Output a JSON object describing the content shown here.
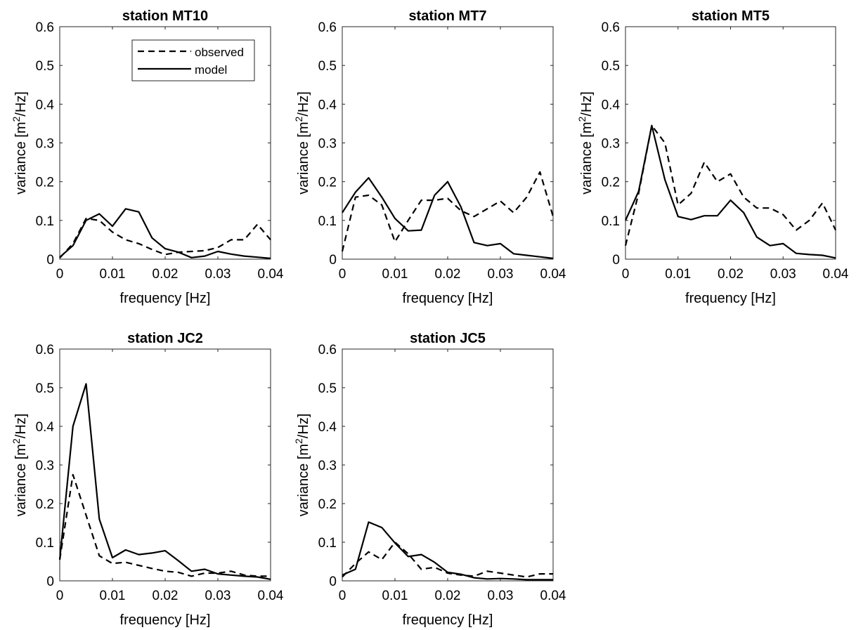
{
  "figure": {
    "legend": {
      "observed": "observed",
      "model": "model",
      "placement": "top-right (first panel)"
    }
  },
  "chart_data": [
    {
      "type": "line",
      "title": "station MT10",
      "xlabel": "frequency [Hz]",
      "ylabel_main": "variance [m",
      "ylabel_sup": "2",
      "ylabel_tail": "/Hz]",
      "xlim": [
        0,
        0.04
      ],
      "ylim": [
        0,
        0.6
      ],
      "xticks": [
        0,
        0.01,
        0.02,
        0.03,
        0.04
      ],
      "xtick_labels": [
        "0",
        "0.01",
        "0.02",
        "0.03",
        "0.04"
      ],
      "yticks": [
        0,
        0.1,
        0.2,
        0.3,
        0.4,
        0.5,
        0.6
      ],
      "ytick_labels": [
        "0",
        "0.1",
        "0.2",
        "0.3",
        "0.4",
        "0.5",
        "0.6"
      ],
      "legend": true,
      "series": [
        {
          "name": "observed",
          "style": "dashed",
          "x": [
            0,
            0.0025,
            0.005,
            0.0075,
            0.01,
            0.0125,
            0.015,
            0.0175,
            0.02,
            0.0225,
            0.025,
            0.0275,
            0.03,
            0.0325,
            0.035,
            0.0375,
            0.04
          ],
          "y": [
            0.003,
            0.04,
            0.105,
            0.1,
            0.07,
            0.05,
            0.04,
            0.025,
            0.012,
            0.018,
            0.02,
            0.022,
            0.03,
            0.05,
            0.05,
            0.09,
            0.05
          ]
        },
        {
          "name": "model",
          "style": "solid",
          "x": [
            0,
            0.0025,
            0.005,
            0.0075,
            0.01,
            0.0125,
            0.015,
            0.0175,
            0.02,
            0.0225,
            0.025,
            0.0275,
            0.03,
            0.0325,
            0.035,
            0.0375,
            0.04
          ],
          "y": [
            0.005,
            0.035,
            0.1,
            0.117,
            0.085,
            0.13,
            0.122,
            0.055,
            0.027,
            0.018,
            0.004,
            0.008,
            0.02,
            0.013,
            0.008,
            0.005,
            0.002
          ]
        }
      ]
    },
    {
      "type": "line",
      "title": "station MT7",
      "xlabel": "frequency [Hz]",
      "ylabel_main": "variance [m",
      "ylabel_sup": "2",
      "ylabel_tail": "/Hz]",
      "xlim": [
        0,
        0.04
      ],
      "ylim": [
        0,
        0.6
      ],
      "xticks": [
        0,
        0.01,
        0.02,
        0.03,
        0.04
      ],
      "xtick_labels": [
        "0",
        "0.01",
        "0.02",
        "0.03",
        "0.04"
      ],
      "yticks": [
        0,
        0.1,
        0.2,
        0.3,
        0.4,
        0.5,
        0.6
      ],
      "ytick_labels": [
        "0",
        "0.1",
        "0.2",
        "0.3",
        "0.4",
        "0.5",
        "0.6"
      ],
      "legend": false,
      "series": [
        {
          "name": "observed",
          "style": "dashed",
          "x": [
            0,
            0.0025,
            0.005,
            0.0075,
            0.01,
            0.0125,
            0.015,
            0.0175,
            0.02,
            0.0225,
            0.025,
            0.0275,
            0.03,
            0.0325,
            0.035,
            0.0375,
            0.04
          ],
          "y": [
            0.02,
            0.16,
            0.165,
            0.14,
            0.045,
            0.1,
            0.152,
            0.152,
            0.157,
            0.125,
            0.11,
            0.13,
            0.15,
            0.12,
            0.16,
            0.225,
            0.11
          ]
        },
        {
          "name": "model",
          "style": "solid",
          "x": [
            0,
            0.0025,
            0.005,
            0.0075,
            0.01,
            0.0125,
            0.015,
            0.0175,
            0.02,
            0.0225,
            0.025,
            0.0275,
            0.03,
            0.0325,
            0.035,
            0.0375,
            0.04
          ],
          "y": [
            0.12,
            0.173,
            0.21,
            0.16,
            0.105,
            0.073,
            0.075,
            0.165,
            0.2,
            0.135,
            0.043,
            0.035,
            0.04,
            0.014,
            0.01,
            0.006,
            0.002
          ]
        }
      ]
    },
    {
      "type": "line",
      "title": "station MT5",
      "xlabel": "frequency [Hz]",
      "ylabel_main": "variance [m",
      "ylabel_sup": "2",
      "ylabel_tail": "/Hz]",
      "xlim": [
        0,
        0.04
      ],
      "ylim": [
        0,
        0.6
      ],
      "xticks": [
        0,
        0.01,
        0.02,
        0.03,
        0.04
      ],
      "xtick_labels": [
        "0",
        "0.01",
        "0.02",
        "0.03",
        "0.04"
      ],
      "yticks": [
        0,
        0.1,
        0.2,
        0.3,
        0.4,
        0.5,
        0.6
      ],
      "ytick_labels": [
        "0",
        "0.1",
        "0.2",
        "0.3",
        "0.4",
        "0.5",
        "0.6"
      ],
      "legend": false,
      "series": [
        {
          "name": "observed",
          "style": "dashed",
          "x": [
            0,
            0.0025,
            0.005,
            0.0075,
            0.01,
            0.0125,
            0.015,
            0.0175,
            0.02,
            0.0225,
            0.025,
            0.0275,
            0.03,
            0.0325,
            0.035,
            0.0375,
            0.04
          ],
          "y": [
            0.035,
            0.17,
            0.345,
            0.3,
            0.14,
            0.17,
            0.25,
            0.2,
            0.22,
            0.16,
            0.132,
            0.132,
            0.115,
            0.075,
            0.1,
            0.145,
            0.075
          ]
        },
        {
          "name": "model",
          "style": "solid",
          "x": [
            0,
            0.0025,
            0.005,
            0.0075,
            0.01,
            0.0125,
            0.015,
            0.0175,
            0.02,
            0.0225,
            0.025,
            0.0275,
            0.03,
            0.0325,
            0.035,
            0.0375,
            0.04
          ],
          "y": [
            0.1,
            0.175,
            0.345,
            0.205,
            0.11,
            0.102,
            0.112,
            0.112,
            0.152,
            0.12,
            0.057,
            0.035,
            0.04,
            0.015,
            0.012,
            0.01,
            0.003
          ]
        }
      ]
    },
    {
      "type": "line",
      "title": "station JC2",
      "xlabel": "frequency [Hz]",
      "ylabel_main": "variance [m",
      "ylabel_sup": "2",
      "ylabel_tail": "/Hz]",
      "xlim": [
        0,
        0.04
      ],
      "ylim": [
        0,
        0.6
      ],
      "xticks": [
        0,
        0.01,
        0.02,
        0.03,
        0.04
      ],
      "xtick_labels": [
        "0",
        "0.01",
        "0.02",
        "0.03",
        "0.04"
      ],
      "yticks": [
        0,
        0.1,
        0.2,
        0.3,
        0.4,
        0.5,
        0.6
      ],
      "ytick_labels": [
        "0",
        "0.1",
        "0.2",
        "0.3",
        "0.4",
        "0.5",
        "0.6"
      ],
      "legend": false,
      "series": [
        {
          "name": "observed",
          "style": "dashed",
          "x": [
            0,
            0.0025,
            0.005,
            0.0075,
            0.01,
            0.0125,
            0.015,
            0.0175,
            0.02,
            0.0225,
            0.025,
            0.0275,
            0.03,
            0.0325,
            0.035,
            0.0375,
            0.04
          ],
          "y": [
            0.055,
            0.275,
            0.17,
            0.065,
            0.045,
            0.048,
            0.04,
            0.032,
            0.025,
            0.022,
            0.012,
            0.02,
            0.02,
            0.025,
            0.015,
            0.012,
            0.012
          ]
        },
        {
          "name": "model",
          "style": "solid",
          "x": [
            0,
            0.0025,
            0.005,
            0.0075,
            0.01,
            0.0125,
            0.015,
            0.0175,
            0.02,
            0.0225,
            0.025,
            0.0275,
            0.03,
            0.0325,
            0.035,
            0.0375,
            0.04
          ],
          "y": [
            0.055,
            0.4,
            0.51,
            0.16,
            0.06,
            0.08,
            0.068,
            0.072,
            0.078,
            0.052,
            0.025,
            0.03,
            0.018,
            0.015,
            0.012,
            0.01,
            0.004
          ]
        }
      ]
    },
    {
      "type": "line",
      "title": "station JC5",
      "xlabel": "frequency [Hz]",
      "ylabel_main": "variance [m",
      "ylabel_sup": "2",
      "ylabel_tail": "/Hz]",
      "xlim": [
        0,
        0.04
      ],
      "ylim": [
        0,
        0.6
      ],
      "xticks": [
        0,
        0.01,
        0.02,
        0.03,
        0.04
      ],
      "xtick_labels": [
        "0",
        "0.01",
        "0.02",
        "0.03",
        "0.04"
      ],
      "yticks": [
        0,
        0.1,
        0.2,
        0.3,
        0.4,
        0.5,
        0.6
      ],
      "ytick_labels": [
        "0",
        "0.1",
        "0.2",
        "0.3",
        "0.4",
        "0.5",
        "0.6"
      ],
      "legend": false,
      "series": [
        {
          "name": "observed",
          "style": "dashed",
          "x": [
            0,
            0.0025,
            0.005,
            0.0075,
            0.01,
            0.0125,
            0.015,
            0.0175,
            0.02,
            0.0225,
            0.025,
            0.0275,
            0.03,
            0.0325,
            0.035,
            0.0375,
            0.04
          ],
          "y": [
            0.01,
            0.045,
            0.075,
            0.055,
            0.1,
            0.07,
            0.03,
            0.035,
            0.02,
            0.015,
            0.012,
            0.025,
            0.02,
            0.015,
            0.01,
            0.018,
            0.018
          ]
        },
        {
          "name": "model",
          "style": "solid",
          "x": [
            0,
            0.0025,
            0.005,
            0.0075,
            0.01,
            0.0125,
            0.015,
            0.0175,
            0.02,
            0.0225,
            0.025,
            0.0275,
            0.03,
            0.0325,
            0.035,
            0.0375,
            0.04
          ],
          "y": [
            0.015,
            0.03,
            0.152,
            0.138,
            0.098,
            0.063,
            0.068,
            0.048,
            0.022,
            0.017,
            0.008,
            0.005,
            0.006,
            0.005,
            0.003,
            0.003,
            0.003
          ]
        }
      ]
    }
  ]
}
